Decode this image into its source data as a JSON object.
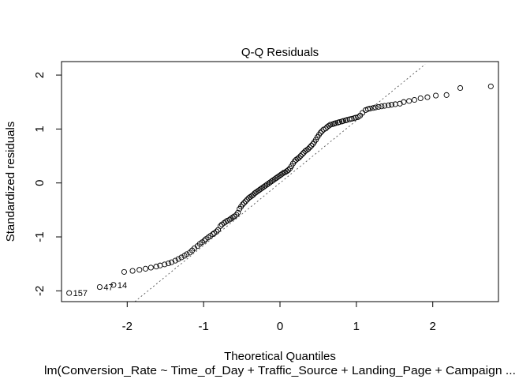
{
  "chart_data": {
    "type": "scatter",
    "title": "Q-Q Residuals",
    "xlabel": "Theoretical Quantiles",
    "ylabel": "Standardized residuals",
    "subtitle": "lm(Conversion_Rate ~ Time_of_Day + Traffic_Source + Landing_Page + Campaign ...",
    "xlim": [
      -2.86,
      2.86
    ],
    "ylim": [
      -2.2,
      2.25
    ],
    "xticks": [
      -2,
      -1,
      0,
      1,
      2
    ],
    "xtick_labels": [
      "-2",
      "-1",
      "0",
      "1",
      "2"
    ],
    "yticks": [
      -2,
      -1,
      0,
      1,
      2
    ],
    "ytick_labels": [
      "-2",
      "-1",
      "0",
      "1",
      "2"
    ],
    "grid": false,
    "reference_line": {
      "style": "dotted",
      "points": [
        [
          -1.9,
          -2.2
        ],
        [
          1.9,
          2.2
        ]
      ]
    },
    "point_labels": [
      {
        "text": "157",
        "x": -2.76,
        "y": -2.04
      },
      {
        "text": "47",
        "x": -2.36,
        "y": -1.93
      },
      {
        "text": "14",
        "x": -2.18,
        "y": -1.89
      }
    ],
    "series": [
      {
        "x": [
          -2.76,
          -2.36,
          -2.18,
          -2.04,
          -1.93,
          -1.84,
          -1.76,
          -1.69,
          -1.62,
          -1.57,
          -1.51,
          -1.46,
          -1.42,
          -1.37,
          -1.33,
          -1.29,
          -1.25,
          -1.22,
          -1.18,
          -1.15,
          -1.12,
          -1.08,
          -1.05,
          -1.02,
          -0.99,
          -0.97,
          -0.94,
          -0.91,
          -0.88,
          -0.86,
          -0.83,
          -0.81,
          -0.78,
          -0.76,
          -0.73,
          -0.71,
          -0.69,
          -0.66,
          -0.64,
          -0.62,
          -0.6,
          -0.57,
          -0.55,
          -0.53,
          -0.51,
          -0.49,
          -0.47,
          -0.45,
          -0.43,
          -0.41,
          -0.39,
          -0.37,
          -0.35,
          -0.33,
          -0.31,
          -0.29,
          -0.27,
          -0.25,
          -0.23,
          -0.21,
          -0.19,
          -0.17,
          -0.15,
          -0.13,
          -0.11,
          -0.09,
          -0.07,
          -0.05,
          -0.03,
          -0.01,
          0.01,
          0.03,
          0.05,
          0.07,
          0.09,
          0.11,
          0.13,
          0.15,
          0.17,
          0.19,
          0.21,
          0.23,
          0.25,
          0.27,
          0.29,
          0.31,
          0.33,
          0.35,
          0.37,
          0.39,
          0.41,
          0.43,
          0.45,
          0.47,
          0.49,
          0.51,
          0.53,
          0.55,
          0.57,
          0.6,
          0.62,
          0.64,
          0.66,
          0.69,
          0.71,
          0.73,
          0.76,
          0.78,
          0.81,
          0.83,
          0.86,
          0.88,
          0.91,
          0.94,
          0.97,
          0.99,
          1.02,
          1.05,
          1.08,
          1.12,
          1.15,
          1.18,
          1.22,
          1.25,
          1.29,
          1.33,
          1.37,
          1.42,
          1.46,
          1.51,
          1.57,
          1.62,
          1.69,
          1.76,
          1.84,
          1.93,
          2.04,
          2.18,
          2.36,
          2.76
        ],
        "y": [
          -2.04,
          -1.93,
          -1.89,
          -1.65,
          -1.63,
          -1.61,
          -1.59,
          -1.57,
          -1.55,
          -1.53,
          -1.51,
          -1.49,
          -1.47,
          -1.44,
          -1.41,
          -1.38,
          -1.35,
          -1.32,
          -1.29,
          -1.25,
          -1.21,
          -1.17,
          -1.13,
          -1.1,
          -1.07,
          -1.04,
          -1.01,
          -0.98,
          -0.95,
          -0.93,
          -0.9,
          -0.87,
          -0.8,
          -0.77,
          -0.74,
          -0.72,
          -0.7,
          -0.68,
          -0.66,
          -0.64,
          -0.62,
          -0.59,
          -0.55,
          -0.48,
          -0.44,
          -0.4,
          -0.37,
          -0.34,
          -0.31,
          -0.28,
          -0.26,
          -0.24,
          -0.22,
          -0.19,
          -0.17,
          -0.15,
          -0.13,
          -0.11,
          -0.09,
          -0.07,
          -0.05,
          -0.03,
          -0.01,
          0.01,
          0.03,
          0.05,
          0.07,
          0.09,
          0.11,
          0.13,
          0.15,
          0.17,
          0.19,
          0.2,
          0.22,
          0.24,
          0.27,
          0.31,
          0.36,
          0.4,
          0.43,
          0.45,
          0.47,
          0.5,
          0.53,
          0.56,
          0.59,
          0.61,
          0.63,
          0.66,
          0.69,
          0.72,
          0.76,
          0.8,
          0.85,
          0.89,
          0.93,
          0.96,
          0.99,
          1.01,
          1.04,
          1.06,
          1.08,
          1.09,
          1.1,
          1.11,
          1.12,
          1.13,
          1.14,
          1.15,
          1.16,
          1.17,
          1.18,
          1.19,
          1.2,
          1.21,
          1.22,
          1.25,
          1.3,
          1.35,
          1.37,
          1.38,
          1.39,
          1.4,
          1.41,
          1.42,
          1.43,
          1.44,
          1.45,
          1.46,
          1.47,
          1.5,
          1.52,
          1.54,
          1.57,
          1.59,
          1.62,
          1.63,
          1.76,
          1.79
        ]
      }
    ]
  }
}
